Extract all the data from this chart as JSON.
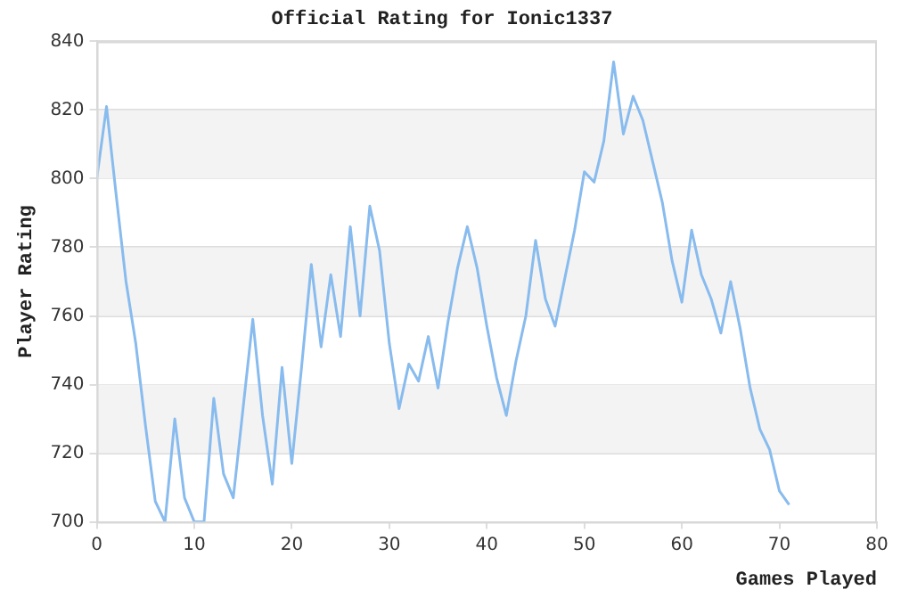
{
  "chart_data": {
    "type": "line",
    "title": "Official Rating for Ionic1337",
    "xlabel": "Games Played",
    "ylabel": "Player Rating",
    "x": [
      0,
      1,
      2,
      3,
      4,
      5,
      6,
      7,
      8,
      9,
      10,
      11,
      12,
      13,
      14,
      15,
      16,
      17,
      18,
      19,
      20,
      21,
      22,
      23,
      24,
      25,
      26,
      27,
      28,
      29,
      30,
      31,
      32,
      33,
      34,
      35,
      36,
      37,
      38,
      39,
      40,
      41,
      42,
      43,
      44,
      45,
      46,
      47,
      48,
      49,
      50,
      51,
      52,
      53,
      54,
      55,
      56,
      57,
      58,
      59,
      60,
      61,
      62,
      63,
      64,
      65,
      66,
      67,
      68,
      69,
      70,
      71
    ],
    "series": [
      {
        "color": "#88bbee",
        "values": [
          800,
          821,
          795,
          770,
          752,
          728,
          706,
          700,
          730,
          707,
          700,
          700,
          736,
          714,
          707,
          733,
          759,
          731,
          711,
          745,
          717,
          745,
          775,
          751,
          772,
          754,
          786,
          760,
          792,
          779,
          752,
          733,
          746,
          741,
          754,
          739,
          758,
          774,
          786,
          774,
          757,
          742,
          731,
          747,
          760,
          782,
          765,
          757,
          771,
          785,
          802,
          799,
          811,
          834,
          813,
          824,
          817,
          805,
          793,
          776,
          764,
          785,
          772,
          765,
          755,
          770,
          756,
          739,
          727,
          721,
          709,
          705
        ]
      }
    ],
    "xlim": [
      0,
      80
    ],
    "xticks": [
      0,
      10,
      20,
      30,
      40,
      50,
      60,
      70,
      80
    ],
    "ylim": [
      700,
      840
    ],
    "yticks": [
      700,
      720,
      740,
      760,
      780,
      800,
      820,
      840
    ],
    "bands": [
      {
        "axis": "y",
        "from": 720,
        "to": 740,
        "color": "#f3f3f3"
      },
      {
        "axis": "y",
        "from": 760,
        "to": 780,
        "color": "#f3f3f3"
      },
      {
        "axis": "y",
        "from": 800,
        "to": 820,
        "color": "#f3f3f3"
      }
    ],
    "grid": "y",
    "legend": false,
    "marker": "none",
    "line_style": "solid"
  }
}
